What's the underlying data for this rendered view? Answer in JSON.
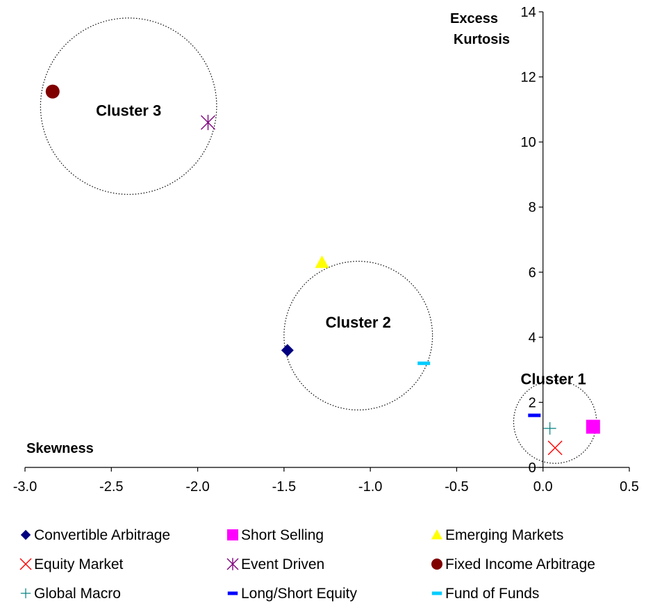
{
  "chart_data": {
    "type": "scatter",
    "xlabel": "Skewness",
    "ylabel_line1": "Excess",
    "ylabel_line2": "Kurtosis",
    "xlim": [
      -3.0,
      0.5
    ],
    "ylim": [
      0,
      14
    ],
    "x_ticks": [
      "-3.0",
      "-2.5",
      "-2.0",
      "-1.5",
      "-1.0",
      "-0.5",
      "0.0",
      "0.5"
    ],
    "y_ticks": [
      "0",
      "2",
      "4",
      "6",
      "8",
      "10",
      "12",
      "14"
    ],
    "grid": false,
    "legend_position": "bottom",
    "series": [
      {
        "name": "Convertible Arbitrage",
        "marker": "diamond",
        "color": "#000080",
        "x": -1.48,
        "y": 3.6
      },
      {
        "name": "Short Selling",
        "marker": "square",
        "color": "#FF00FF",
        "x": 0.29,
        "y": 1.25
      },
      {
        "name": "Emerging Markets",
        "marker": "triangle",
        "color": "#FFFF00",
        "x": -1.28,
        "y": 6.3
      },
      {
        "name": "Equity Market",
        "marker": "x",
        "color": "#FF0000",
        "x": 0.07,
        "y": 0.6
      },
      {
        "name": "Event Driven",
        "marker": "asterisk",
        "color": "#800080",
        "x": -1.94,
        "y": 10.6
      },
      {
        "name": "Fixed Income Arbitrage",
        "marker": "circle",
        "color": "#800000",
        "x": -2.84,
        "y": 11.55
      },
      {
        "name": "Global Macro",
        "marker": "plus",
        "color": "#008080",
        "x": 0.04,
        "y": 1.2
      },
      {
        "name": "Long/Short Equity",
        "marker": "dash",
        "color": "#0000FF",
        "x": -0.05,
        "y": 1.6
      },
      {
        "name": "Fund of Funds",
        "marker": "dash",
        "color": "#00CCFF",
        "x": -0.69,
        "y": 3.2
      }
    ],
    "clusters": [
      {
        "label": "Cluster 1",
        "cx": 0.07,
        "cy": 1.4,
        "r": 0.24,
        "label_x": 0.06,
        "label_y": 2.55
      },
      {
        "label": "Cluster 2",
        "cx": -1.07,
        "cy": 4.05,
        "r": 0.43,
        "label_x": -1.07,
        "label_y": 4.3
      },
      {
        "label": "Cluster 3",
        "cx": -2.4,
        "cy": 11.1,
        "r": 0.51,
        "label_x": -2.4,
        "label_y": 10.8
      }
    ]
  }
}
